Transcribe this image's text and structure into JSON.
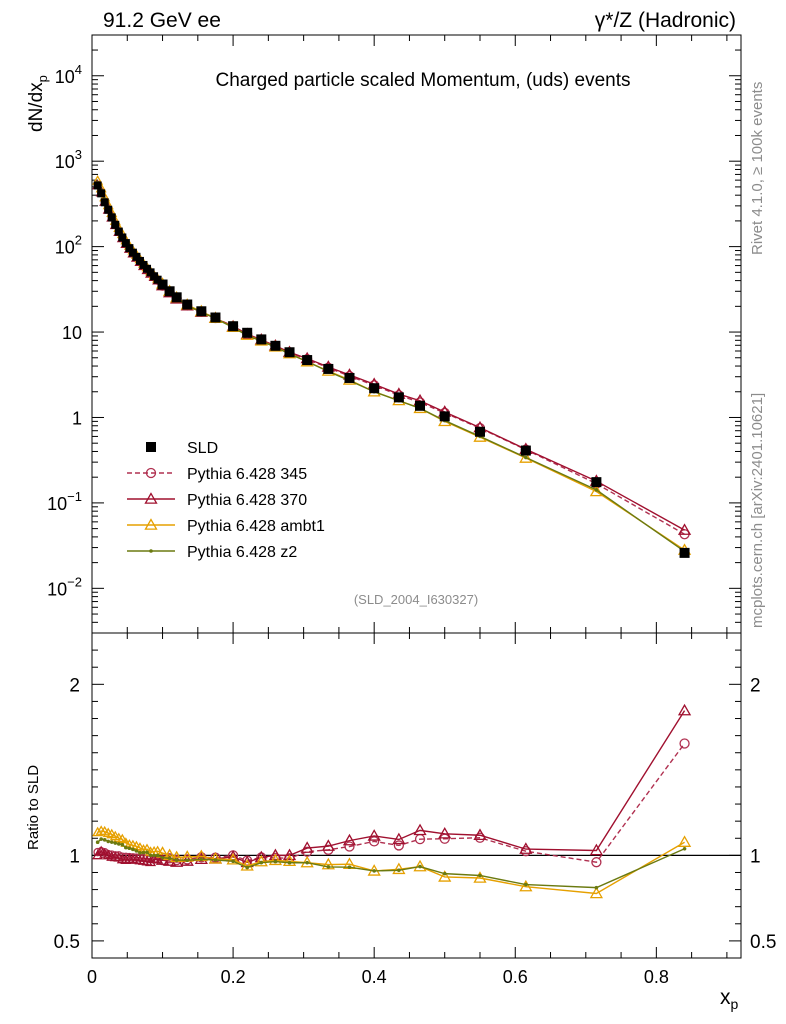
{
  "header": {
    "left": "91.2 GeV ee",
    "right": "γ*/Z (Hadronic)"
  },
  "side": {
    "top": "Rivet 4.1.0, ≥ 100k events",
    "bottom": "mcplots.cern.ch [arXiv:2401.10621]"
  },
  "chart_data": {
    "type": "line",
    "title": "Charged particle scaled Momentum, (uds) events",
    "analysis_id": "(SLD_2004_I630327)",
    "xlabel": "x",
    "xlabel_sub": "p",
    "ylabel": "dN/dx",
    "ylabel_sub": "p",
    "xlim": [
      0,
      0.92
    ],
    "ylim": [
      0.003,
      30000
    ],
    "yscale": "log",
    "x_ticks": [
      "0",
      "0.2",
      "0.4",
      "0.6",
      "0.8"
    ],
    "y_ticks": [
      {
        "base": "10",
        "exp": "4",
        "plain": ""
      },
      {
        "base": "10",
        "exp": "3",
        "plain": ""
      },
      {
        "base": "10",
        "exp": "2",
        "plain": ""
      },
      {
        "base": "",
        "exp": "",
        "plain": "10"
      },
      {
        "base": "",
        "exp": "",
        "plain": "1"
      },
      {
        "base": "10",
        "exp": "−1",
        "plain": ""
      },
      {
        "base": "10",
        "exp": "−2",
        "plain": ""
      }
    ],
    "ratio": {
      "ylabel": "Ratio to SLD",
      "ylim": [
        0.4,
        2.3
      ],
      "ticks": [
        "2",
        "1",
        "0.5"
      ]
    },
    "legend": [
      {
        "name": "SLD",
        "color": "#000000",
        "marker": "square"
      },
      {
        "name": "Pythia 6.428 345",
        "color": "#b03050",
        "marker": "circle"
      },
      {
        "name": "Pythia 6.428 370",
        "color": "#a0102f",
        "marker": "triangle"
      },
      {
        "name": "Pythia 6.428 ambt1",
        "color": "#e6a000",
        "marker": "triangle"
      },
      {
        "name": "Pythia 6.428 z2",
        "color": "#6b7a10",
        "marker": "dot"
      }
    ],
    "x": [
      0.008,
      0.013,
      0.018,
      0.023,
      0.028,
      0.033,
      0.038,
      0.043,
      0.048,
      0.053,
      0.058,
      0.063,
      0.068,
      0.073,
      0.078,
      0.083,
      0.088,
      0.093,
      0.1,
      0.11,
      0.12,
      0.135,
      0.155,
      0.175,
      0.2,
      0.22,
      0.24,
      0.26,
      0.28,
      0.305,
      0.335,
      0.365,
      0.4,
      0.435,
      0.465,
      0.5,
      0.55,
      0.615,
      0.715,
      0.84
    ],
    "series": [
      {
        "name": "SLD",
        "values": [
          520,
          420,
          330,
          270,
          220,
          180,
          150,
          128,
          110,
          96,
          85,
          76,
          68,
          61,
          55,
          50,
          45,
          41,
          36,
          30,
          25.5,
          21,
          17.5,
          14.8,
          11.7,
          9.8,
          8.2,
          6.9,
          5.8,
          4.7,
          3.7,
          2.9,
          2.2,
          1.72,
          1.37,
          1.03,
          0.68,
          0.41,
          0.175,
          0.026
        ]
      },
      {
        "name": "Pythia 6.428 345",
        "values": [
          530,
          430,
          336,
          272,
          221,
          180,
          150,
          127,
          109,
          95,
          84,
          75,
          67,
          60,
          54,
          49,
          44,
          40,
          35,
          29.5,
          24.8,
          20.5,
          17.3,
          14.6,
          11.7,
          9.5,
          8.1,
          6.8,
          5.7,
          4.8,
          3.82,
          3.05,
          2.38,
          1.82,
          1.5,
          1.13,
          0.75,
          0.42,
          0.168,
          0.043
        ]
      },
      {
        "name": "Pythia 6.428 370",
        "values": [
          520,
          430,
          333,
          270,
          218,
          178,
          148,
          125,
          107,
          94,
          83,
          74,
          66,
          59,
          53,
          48,
          44,
          40,
          35,
          29,
          24.5,
          20.3,
          17.1,
          14.5,
          11.6,
          9.4,
          8.1,
          6.9,
          5.8,
          4.9,
          3.9,
          3.15,
          2.45,
          1.88,
          1.57,
          1.16,
          0.76,
          0.425,
          0.18,
          0.048
        ]
      },
      {
        "name": "Pythia 6.428 ambt1",
        "values": [
          590,
          480,
          376,
          305,
          247,
          200,
          165,
          140,
          118,
          102,
          90,
          80,
          71,
          63,
          57,
          51,
          46,
          42,
          36.5,
          30,
          25.2,
          20.8,
          17.4,
          14.5,
          11.4,
          9.2,
          7.9,
          6.7,
          5.6,
          4.5,
          3.5,
          2.75,
          2.0,
          1.58,
          1.28,
          0.9,
          0.59,
          0.335,
          0.136,
          0.028
        ]
      },
      {
        "name": "Pythia 6.428 z2",
        "values": [
          560,
          460,
          360,
          292,
          237,
          193,
          160,
          136,
          115,
          100,
          88,
          78,
          69,
          62,
          56,
          50,
          45,
          41,
          35.5,
          29.5,
          24.8,
          20.4,
          17.1,
          14.4,
          11.3,
          9.1,
          7.85,
          6.65,
          5.55,
          4.5,
          3.45,
          2.7,
          2.0,
          1.57,
          1.28,
          0.92,
          0.6,
          0.34,
          0.142,
          0.027
        ]
      }
    ]
  }
}
